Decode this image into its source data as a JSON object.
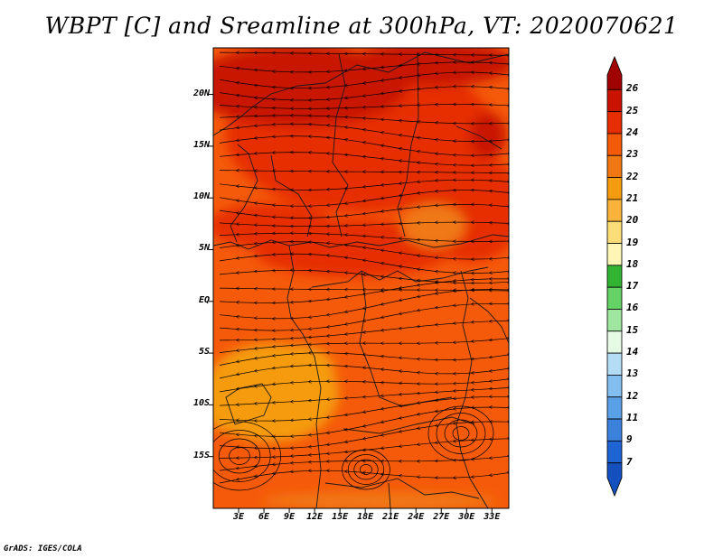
{
  "title": "WBPT [C] and Sreamline at 300hPa, VT: 2020070621",
  "credit": "GrADS: IGES/COLA",
  "map": {
    "lat_labels": [
      "20N",
      "15N",
      "10N",
      "5N",
      "EQ",
      "5S",
      "10S",
      "15S"
    ],
    "lon_labels": [
      "3E",
      "6E",
      "9E",
      "12E",
      "15E",
      "18E",
      "21E",
      "24E",
      "27E",
      "30E",
      "33E"
    ],
    "lat_range": [
      -20,
      24.5
    ],
    "lon_range": [
      0,
      35
    ]
  },
  "colorbar": {
    "labels": [
      "26",
      "25",
      "24",
      "23",
      "22",
      "21",
      "20",
      "19",
      "18",
      "17",
      "16",
      "15",
      "14",
      "13",
      "12",
      "11",
      "9",
      "7"
    ],
    "colors": [
      "#a00000",
      "#c81400",
      "#e62d00",
      "#f55a0a",
      "#f07814",
      "#f59b0f",
      "#fab43c",
      "#fadc78",
      "#fff5b4",
      "#32b432",
      "#64d264",
      "#a0e6a0",
      "#e6fae6",
      "#b4dcf5",
      "#82bef0",
      "#5aa0e6",
      "#3c82dc",
      "#1e64d2",
      "#1450be"
    ]
  },
  "colors": {
    "field_base": "#f55a0a",
    "field_warm": "#e62d00",
    "field_hot": "#c81400",
    "field_cool": "#f07814",
    "field_coolest": "#f59b0f"
  }
}
